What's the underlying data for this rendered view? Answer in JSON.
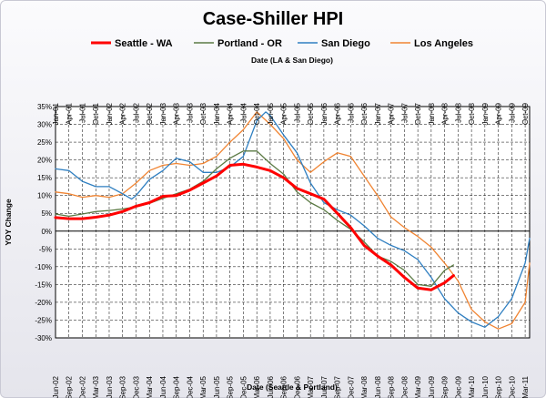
{
  "chart_data": {
    "type": "line",
    "title": "Case-Shiller HPI",
    "xlabel_top": "Date (LA & San Diego)",
    "xlabel_bottom": "Date (Seattle & Portland)",
    "ylabel": "YOY Change",
    "ylim": [
      -30,
      35
    ],
    "y_ticks": [
      35,
      30,
      25,
      20,
      15,
      10,
      5,
      0,
      -5,
      -10,
      -15,
      -20,
      -25,
      -30
    ],
    "y_tick_labels": [
      "35%",
      "30%",
      "25%",
      "20%",
      "15%",
      "10%",
      "5%",
      "0%",
      "-5%",
      "-10%",
      "-15%",
      "-20%",
      "-25%",
      "-30%"
    ],
    "grid": true,
    "legend_position": "top",
    "top_axis_ticks": [
      "Jan-01",
      "Apr-01",
      "Jul-01",
      "Oct-01",
      "Jan-02",
      "Apr-02",
      "Jul-02",
      "Oct-02",
      "Jan-03",
      "Apr-03",
      "Jul-03",
      "Oct-03",
      "Jan-04",
      "Apr-04",
      "Jul-04",
      "Oct-04",
      "Jan-05",
      "Apr-05",
      "Jul-05",
      "Oct-05",
      "Jan-06",
      "Apr-06",
      "Jul-06",
      "Oct-06",
      "Jan-07",
      "Apr-07",
      "Jul-07",
      "Oct-07",
      "Jan-08",
      "Apr-08",
      "Jul-08",
      "Oct-08",
      "Jan-09",
      "Apr-09",
      "Jul-09",
      "Oct-09"
    ],
    "bottom_axis_ticks": [
      "Jun-02",
      "Sep-02",
      "Dec-02",
      "Mar-03",
      "Jun-03",
      "Sep-03",
      "Dec-03",
      "Mar-04",
      "Jun-04",
      "Sep-04",
      "Dec-04",
      "Mar-05",
      "Jun-05",
      "Sep-05",
      "Dec-05",
      "Mar-06",
      "Jun-06",
      "Sep-06",
      "Dec-06",
      "Mar-07",
      "Jun-07",
      "Sep-07",
      "Dec-07",
      "Mar-08",
      "Jun-08",
      "Sep-08",
      "Dec-08",
      "Mar-09",
      "Jun-09",
      "Sep-09",
      "Dec-09",
      "Mar-10",
      "Jun-10",
      "Sep-10",
      "Dec-10",
      "Mar-11"
    ],
    "series": [
      {
        "name": "Seattle - WA",
        "color": "#ff0000",
        "axis": "bottom",
        "width": 3,
        "points": [
          [
            "Jun-02",
            3.8
          ],
          [
            "Sep-02",
            3.5
          ],
          [
            "Dec-02",
            3.5
          ],
          [
            "Mar-03",
            3.9
          ],
          [
            "Jun-03",
            4.5
          ],
          [
            "Sep-03",
            5.5
          ],
          [
            "Dec-03",
            7
          ],
          [
            "Mar-04",
            8
          ],
          [
            "Jun-04",
            9.8
          ],
          [
            "Sep-04",
            10
          ],
          [
            "Dec-04",
            11.5
          ],
          [
            "Mar-05",
            13.5
          ],
          [
            "Jun-05",
            15.5
          ],
          [
            "Sep-05",
            18.5
          ],
          [
            "Dec-05",
            18.8
          ],
          [
            "Mar-06",
            18
          ],
          [
            "Jun-06",
            17
          ],
          [
            "Sep-06",
            15
          ],
          [
            "Dec-06",
            12
          ],
          [
            "Mar-07",
            10.5
          ],
          [
            "Jun-07",
            9
          ],
          [
            "Sep-07",
            5
          ],
          [
            "Dec-07",
            1
          ],
          [
            "Mar-08",
            -4
          ],
          [
            "Jun-08",
            -7
          ],
          [
            "Sep-08",
            -9.5
          ],
          [
            "Dec-08",
            -13
          ],
          [
            "Mar-09",
            -16
          ],
          [
            "Jun-09",
            -16.5
          ],
          [
            "Sep-09",
            -14.5
          ],
          [
            "Nov-09",
            -12.5
          ]
        ]
      },
      {
        "name": "Portland - OR",
        "color": "#5b7a44",
        "axis": "bottom",
        "width": 1.3,
        "points": [
          [
            "Jun-02",
            4.8
          ],
          [
            "Sep-02",
            4.2
          ],
          [
            "Dec-02",
            4.8
          ],
          [
            "Mar-03",
            5.5
          ],
          [
            "Jun-03",
            5.8
          ],
          [
            "Sep-03",
            6.2
          ],
          [
            "Dec-03",
            6.8
          ],
          [
            "Mar-04",
            7.8
          ],
          [
            "Jun-04",
            9.2
          ],
          [
            "Sep-04",
            10.5
          ],
          [
            "Dec-04",
            11.8
          ],
          [
            "Mar-05",
            14
          ],
          [
            "Jun-05",
            17.5
          ],
          [
            "Sep-05",
            20.5
          ],
          [
            "Dec-05",
            22.5
          ],
          [
            "Mar-06",
            22.5
          ],
          [
            "Jun-06",
            19
          ],
          [
            "Sep-06",
            16
          ],
          [
            "Dec-06",
            11
          ],
          [
            "Mar-07",
            8
          ],
          [
            "Jun-07",
            6
          ],
          [
            "Sep-07",
            3
          ],
          [
            "Dec-07",
            0.5
          ],
          [
            "Mar-08",
            -3
          ],
          [
            "Jun-08",
            -7
          ],
          [
            "Sep-08",
            -8.5
          ],
          [
            "Dec-08",
            -11
          ],
          [
            "Mar-09",
            -15
          ],
          [
            "Jun-09",
            -15.5
          ],
          [
            "Sep-09",
            -11
          ],
          [
            "Nov-09",
            -9.5
          ]
        ]
      },
      {
        "name": "San Diego",
        "color": "#2f7fc1",
        "axis": "top",
        "width": 1.3,
        "points": [
          [
            "Jan-01",
            17.5
          ],
          [
            "Apr-01",
            17
          ],
          [
            "Jul-01",
            14
          ],
          [
            "Oct-01",
            12.5
          ],
          [
            "Jan-02",
            12.5
          ],
          [
            "Apr-02",
            10.5
          ],
          [
            "Jun-02",
            9
          ],
          [
            "Jul-02",
            10
          ],
          [
            "Oct-02",
            14.5
          ],
          [
            "Jan-03",
            17
          ],
          [
            "Apr-03",
            20.5
          ],
          [
            "Jul-03",
            19.5
          ],
          [
            "Oct-03",
            16.5
          ],
          [
            "Jan-04",
            16.5
          ],
          [
            "Apr-04",
            18
          ],
          [
            "Jul-04",
            21
          ],
          [
            "Oct-04",
            31
          ],
          [
            "Dec-04",
            33.5
          ],
          [
            "Jan-05",
            32.5
          ],
          [
            "Apr-05",
            27
          ],
          [
            "Jul-05",
            22
          ],
          [
            "Oct-05",
            13.5
          ],
          [
            "Jan-06",
            8
          ],
          [
            "Apr-06",
            6
          ],
          [
            "Jul-06",
            4.5
          ],
          [
            "Oct-06",
            1.5
          ],
          [
            "Jan-07",
            -2
          ],
          [
            "Apr-07",
            -4
          ],
          [
            "Jul-07",
            -5.5
          ],
          [
            "Oct-07",
            -8
          ],
          [
            "Jan-08",
            -13
          ],
          [
            "Apr-08",
            -19
          ],
          [
            "Jul-08",
            -23
          ],
          [
            "Oct-08",
            -25.5
          ],
          [
            "Jan-09",
            -27
          ],
          [
            "Apr-09",
            -24
          ],
          [
            "Jul-09",
            -19
          ],
          [
            "Oct-09",
            -9
          ],
          [
            "Nov-09",
            -2
          ]
        ]
      },
      {
        "name": "Los Angeles",
        "color": "#f08432",
        "axis": "top",
        "width": 1.3,
        "points": [
          [
            "Jan-01",
            11
          ],
          [
            "Apr-01",
            10.5
          ],
          [
            "Jul-01",
            9.5
          ],
          [
            "Oct-01",
            10
          ],
          [
            "Jan-02",
            9.5
          ],
          [
            "Apr-02",
            10.5
          ],
          [
            "Jul-02",
            13.5
          ],
          [
            "Oct-02",
            17
          ],
          [
            "Jan-03",
            18.5
          ],
          [
            "Apr-03",
            19
          ],
          [
            "Jul-03",
            18.5
          ],
          [
            "Oct-03",
            19
          ],
          [
            "Jan-04",
            21
          ],
          [
            "Apr-04",
            25
          ],
          [
            "Jul-04",
            28.5
          ],
          [
            "Oct-04",
            33.5
          ],
          [
            "Jan-05",
            30
          ],
          [
            "Apr-05",
            26
          ],
          [
            "Jul-05",
            20
          ],
          [
            "Oct-05",
            16.5
          ],
          [
            "Jan-06",
            19.5
          ],
          [
            "Apr-06",
            22
          ],
          [
            "Jul-06",
            21
          ],
          [
            "Oct-06",
            15.5
          ],
          [
            "Jan-07",
            10
          ],
          [
            "Apr-07",
            4
          ],
          [
            "Jul-07",
            1
          ],
          [
            "Oct-07",
            -1.5
          ],
          [
            "Jan-08",
            -4.5
          ],
          [
            "Apr-08",
            -9
          ],
          [
            "Jul-08",
            -14
          ],
          [
            "Oct-08",
            -22
          ],
          [
            "Jan-09",
            -25.5
          ],
          [
            "Apr-09",
            -27.5
          ],
          [
            "Jul-09",
            -26
          ],
          [
            "Oct-09",
            -20
          ],
          [
            "Nov-09",
            -9
          ]
        ]
      }
    ]
  }
}
